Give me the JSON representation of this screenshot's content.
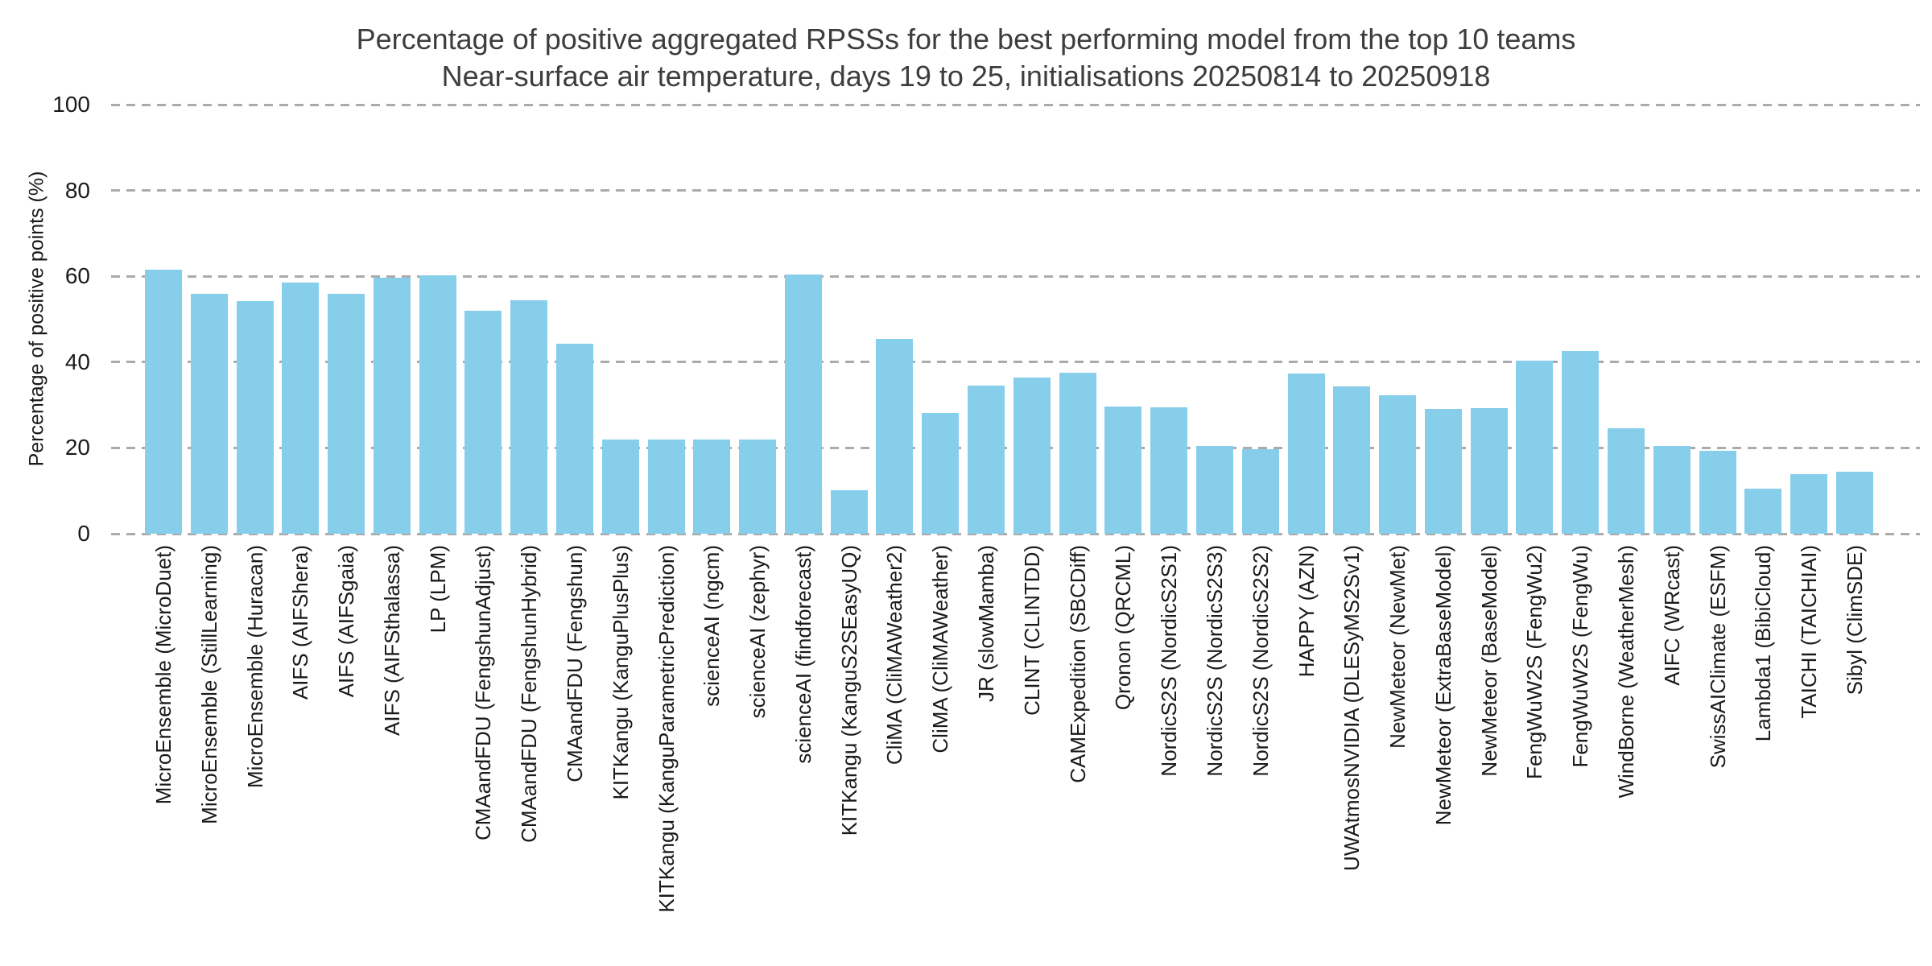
{
  "chart_data": {
    "type": "bar",
    "title": "Percentage of positive aggregated RPSSs for the best performing model from the top 10 teams",
    "subtitle": "Near-surface air temperature, days 19 to 25, initialisations 20250814 to 20250918",
    "xlabel": "",
    "ylabel": "Percentage of positive points (%)",
    "ylim": [
      0,
      100
    ],
    "yticks": [
      0,
      20,
      40,
      60,
      80,
      100
    ],
    "grid": "horizontal-dashed",
    "gridline_color": "#ababab",
    "bar_color": "#87CEEB",
    "background_color": "#ffffff",
    "legend": null,
    "x_tick_rotation_degrees": 90,
    "categories": [
      "MicroEnsemble (MicroDuet)",
      "MicroEnsemble (StillLearning)",
      "MicroEnsemble (Huracan)",
      "AIFS (AIFShera)",
      "AIFS (AIFSgaia)",
      "AIFS (AIFSthalassa)",
      "LP (LPM)",
      "CMAandFDU (FengshunAdjust)",
      "CMAandFDU (FengshunHybrid)",
      "CMAandFDU (Fengshun)",
      "KITKangu (KanguPlusPlus)",
      "KITKangu (KanguParametricPrediction)",
      "scienceAI (ngcm)",
      "scienceAI (zephyr)",
      "scienceAI (findforecast)",
      "KITKangu (KanguS2SEasyUQ)",
      "CliMA (CliMAWeather2)",
      "CliMA (CliMAWeather)",
      "JR (slowMamba)",
      "CLINT (CLINTDD)",
      "CAMExpedition (SBCDiff)",
      "Qronon (QRCML)",
      "NordicS2S (NordicS2S1)",
      "NordicS2S (NordicS2S3)",
      "NordicS2S (NordicS2S2)",
      "HAPPY (AZN)",
      "UWAtmosNVIDIA (DLESyMS2Sv1)",
      "NewMeteor (NewMet)",
      "NewMeteor (ExtraBaseModel)",
      "NewMeteor (BaseModel)",
      "FengWuW2S (FengWu2)",
      "FengWuW2S (FengWu)",
      "WindBorne (WeatherMesh)",
      "AIFC (WRcast)",
      "SwissAIClimate (ESFM)",
      "Lambda1 (BibiCloud)",
      "TAICHI (TAICHIAI)",
      "Sibyl (ClimSDE)"
    ],
    "values": [
      61.5,
      56.0,
      54.2,
      58.5,
      56.0,
      59.7,
      60.3,
      52.0,
      54.5,
      44.2,
      22.0,
      22.0,
      22.0,
      22.0,
      60.4,
      10.2,
      45.4,
      28.1,
      34.6,
      36.4,
      37.6,
      29.7,
      29.4,
      20.5,
      19.7,
      37.3,
      34.3,
      32.2,
      29.1,
      29.3,
      40.4,
      42.6,
      24.6,
      20.4,
      19.3,
      10.6,
      13.9,
      14.5
    ]
  }
}
